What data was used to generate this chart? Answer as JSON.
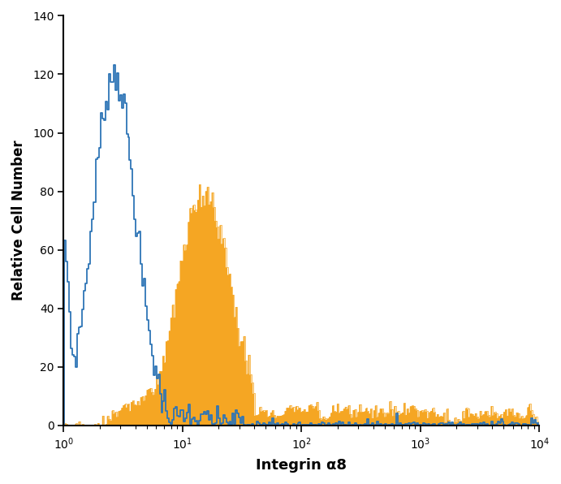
{
  "title": "",
  "xlabel": "Integrin α8",
  "ylabel": "Relative Cell Number",
  "xlim": [
    1.0,
    10000.0
  ],
  "ylim": [
    0,
    140
  ],
  "yticks": [
    0,
    20,
    40,
    60,
    80,
    100,
    120,
    140
  ],
  "background_color": "#ffffff",
  "blue_color": "#2e75b6",
  "orange_color": "#f5a623",
  "blue_peak_log": 0.42,
  "blue_peak_sigma": 0.18,
  "blue_peak_height": 120,
  "blue_left_spike_height": 50,
  "orange_peak_log": 1.18,
  "orange_peak_sigma": 0.22,
  "orange_peak_height": 80,
  "seed": 7,
  "n_bins": 300
}
